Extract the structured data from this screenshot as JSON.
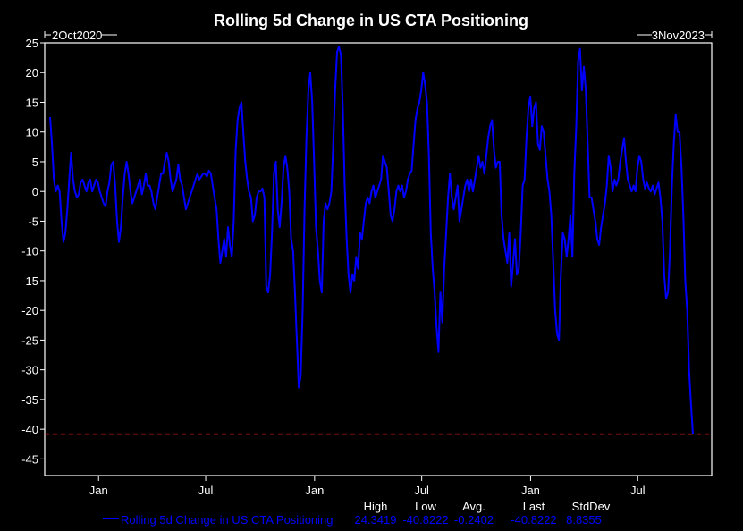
{
  "chart_data": {
    "type": "line",
    "title": "Rolling 5d Change in US CTA Positioning",
    "start_label": "2Oct2020",
    "end_label": "3Nov2023",
    "x_range": [
      "2020-10-02",
      "2023-11-03"
    ],
    "ylim": [
      -47.8,
      25
    ],
    "y_ticks": [
      25,
      20,
      15,
      10,
      5,
      0,
      -5,
      -10,
      -15,
      -20,
      -25,
      -30,
      -35,
      -40,
      -45
    ],
    "x_ticks": [
      {
        "date": "2021-01-01",
        "label": "Jan"
      },
      {
        "date": "2021-07-01",
        "label": "Jul"
      },
      {
        "date": "2022-01-01",
        "label": "Jan"
      },
      {
        "date": "2022-07-01",
        "label": "Jul"
      },
      {
        "date": "2023-01-01",
        "label": "Jan"
      },
      {
        "date": "2023-07-01",
        "label": "Jul"
      }
    ],
    "grid": false,
    "reference_line": {
      "value": -40.8222,
      "color": "#e02020",
      "style": "dashed"
    },
    "series": [
      {
        "name": "Rolling 5d Change in US CTA Positioning",
        "color": "#0000ff",
        "values": [
          12.5,
          8,
          2,
          0,
          1,
          0,
          -5,
          -8.5,
          -7,
          -3,
          2,
          6.5,
          2,
          0,
          -1,
          -0.5,
          1.5,
          2,
          1,
          0,
          1.5,
          2,
          0,
          1,
          2,
          1.5,
          0,
          -1,
          -2,
          -2.5,
          0,
          1.5,
          4.5,
          5,
          1,
          -5,
          -8.5,
          -6,
          -1,
          3,
          5,
          3,
          0,
          -2,
          -1,
          0,
          1,
          2,
          -0.5,
          1,
          3,
          1,
          1,
          0,
          -2,
          -3,
          -1,
          1,
          3,
          3,
          5,
          6.5,
          5,
          2,
          0,
          1,
          2,
          4.5,
          2,
          1,
          -1,
          -3,
          -2,
          -1,
          0,
          1,
          2,
          3,
          2,
          2.5,
          3,
          3,
          2.5,
          3.5,
          3,
          1,
          -1,
          -3,
          -8,
          -12,
          -10,
          -8,
          -11,
          -6,
          -9,
          -11,
          -5,
          7,
          12,
          14,
          15,
          10,
          5,
          2,
          0,
          -1,
          -5,
          -4,
          -1,
          0,
          0,
          0.5,
          -1,
          -16,
          -17,
          -14,
          -7,
          3,
          5,
          -3,
          -6,
          -2,
          4,
          6,
          4,
          0,
          -8,
          -10,
          -17,
          -25,
          -33,
          -31,
          -20,
          -3,
          9,
          17,
          20,
          15,
          5,
          -6,
          -10,
          -15,
          -17,
          -5,
          -2,
          -3,
          -2,
          0,
          8,
          17,
          23.5,
          24.3419,
          23,
          14,
          1,
          -8,
          -14,
          -17,
          -14,
          -15,
          -11,
          -13,
          -7,
          -8,
          -5,
          -2,
          -1,
          -2,
          0,
          1,
          -1,
          0,
          1,
          2,
          6,
          5,
          4,
          0,
          -4,
          -5,
          -3,
          0,
          1,
          0,
          1,
          -1,
          0,
          2,
          3,
          3.5,
          8,
          12,
          14,
          15,
          17,
          20,
          18,
          15,
          6,
          -7,
          -13,
          -17,
          -23,
          -27,
          -17,
          -22,
          -13,
          -7,
          -1,
          3,
          -1,
          -3,
          -1,
          1,
          -5,
          -3,
          -1,
          1,
          2,
          0,
          2,
          0,
          2,
          4,
          6,
          4,
          5,
          3,
          6,
          9,
          11,
          12,
          7,
          4,
          5,
          5,
          -4,
          -8,
          -10,
          -12,
          -7,
          -16,
          -12,
          -8,
          -14,
          -13,
          -7,
          1,
          2,
          9,
          14,
          16,
          11,
          14,
          15,
          8,
          7,
          11,
          10,
          6,
          2,
          0,
          -4,
          -12,
          -20,
          -24,
          -25,
          -14,
          -7,
          -8,
          -11,
          -8,
          -4,
          -11,
          3,
          11,
          22,
          24,
          17,
          21,
          17,
          8,
          -1,
          -1,
          -3,
          -5,
          -8,
          -9,
          -6,
          -4,
          -2,
          1,
          6,
          4,
          0,
          2,
          1,
          2,
          5,
          7,
          9,
          5,
          2,
          1,
          0,
          1,
          0,
          4,
          6,
          5,
          2,
          0.5,
          1.5,
          0.5,
          0,
          1,
          -0.5,
          0.5,
          1.5,
          -1,
          -5,
          -14,
          -18,
          -17,
          -10,
          1,
          8,
          13,
          10,
          10,
          4,
          -4,
          -15,
          -20,
          -30,
          -36,
          -40.8222
        ]
      }
    ],
    "legend": {
      "placement": "bottom",
      "headers": [
        "High",
        "Low",
        "Avg.",
        "Last",
        "StdDev"
      ],
      "stats": [
        "24.3419",
        "-40.8222",
        "-0.2402",
        "-40.8222",
        "8.8355"
      ]
    }
  }
}
